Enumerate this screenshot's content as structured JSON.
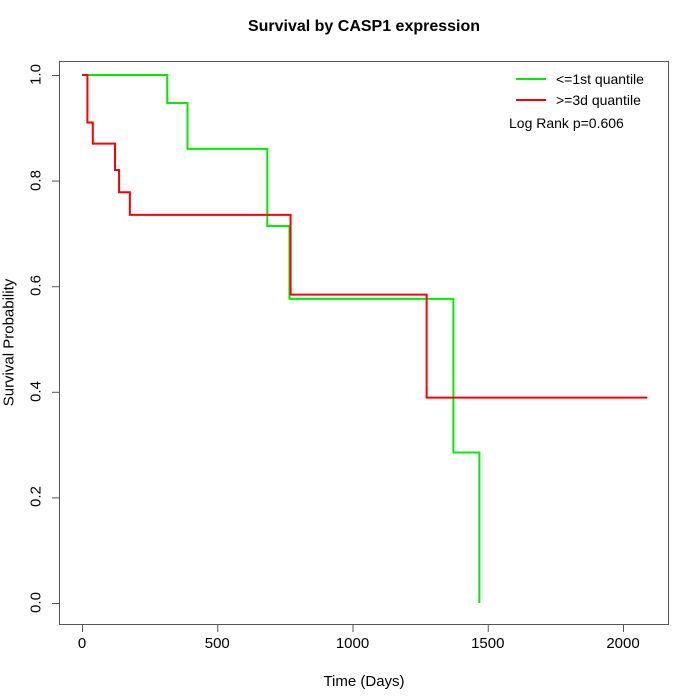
{
  "title": "Survival by CASP1 expression",
  "axes": {
    "x": {
      "label": "Time (Days)",
      "tick_labels": [
        "0",
        "500",
        "1000",
        "1500",
        "2000"
      ],
      "tick_values": [
        0,
        500,
        1000,
        1500,
        2000
      ]
    },
    "y": {
      "label": "Survival Probability",
      "tick_labels": [
        "0.0",
        "0.2",
        "0.4",
        "0.6",
        "0.8",
        "1.0"
      ],
      "tick_values": [
        0.0,
        0.2,
        0.4,
        0.6,
        0.8,
        1.0
      ]
    }
  },
  "legend": {
    "entries": [
      {
        "label": "<=1st quantile",
        "color": "#00ee00"
      },
      {
        "label": ">=3d quantile",
        "color": "#ff0000"
      }
    ],
    "pvalue_text": "Log Rank p=0.606"
  },
  "chart_data": {
    "type": "line",
    "subtype": "kaplan-meier-step",
    "title": "Survival by CASP1 expression",
    "xlabel": "Time (Days)",
    "ylabel": "Survival Probability",
    "xlim": [
      -85,
      2170
    ],
    "ylim": [
      -0.04,
      1.03
    ],
    "x_ticks": [
      0,
      500,
      1000,
      1500,
      2000
    ],
    "y_ticks": [
      0.0,
      0.2,
      0.4,
      0.6,
      0.8,
      1.0
    ],
    "grid": false,
    "legend_position": "top-right-inside",
    "annotation": "Log Rank p=0.606",
    "series": [
      {
        "name": "<=1st quantile",
        "color": "#00ee00",
        "points": [
          [
            0,
            1.0
          ],
          [
            315,
            1.0
          ],
          [
            315,
            0.947
          ],
          [
            390,
            0.947
          ],
          [
            390,
            0.86
          ],
          [
            685,
            0.86
          ],
          [
            685,
            0.714
          ],
          [
            767,
            0.714
          ],
          [
            767,
            0.576
          ],
          [
            1373,
            0.576
          ],
          [
            1373,
            0.285
          ],
          [
            1469,
            0.285
          ],
          [
            1469,
            0.0
          ]
        ]
      },
      {
        "name": ">=3d quantile",
        "color": "#ff0000",
        "points": [
          [
            0,
            1.0
          ],
          [
            20,
            1.0
          ],
          [
            20,
            0.91
          ],
          [
            40,
            0.91
          ],
          [
            40,
            0.87
          ],
          [
            122,
            0.87
          ],
          [
            122,
            0.82
          ],
          [
            137,
            0.82
          ],
          [
            137,
            0.778
          ],
          [
            177,
            0.778
          ],
          [
            177,
            0.735
          ],
          [
            771,
            0.735
          ],
          [
            771,
            0.584
          ],
          [
            1274,
            0.584
          ],
          [
            1274,
            0.389
          ],
          [
            2090,
            0.389
          ]
        ]
      }
    ]
  }
}
